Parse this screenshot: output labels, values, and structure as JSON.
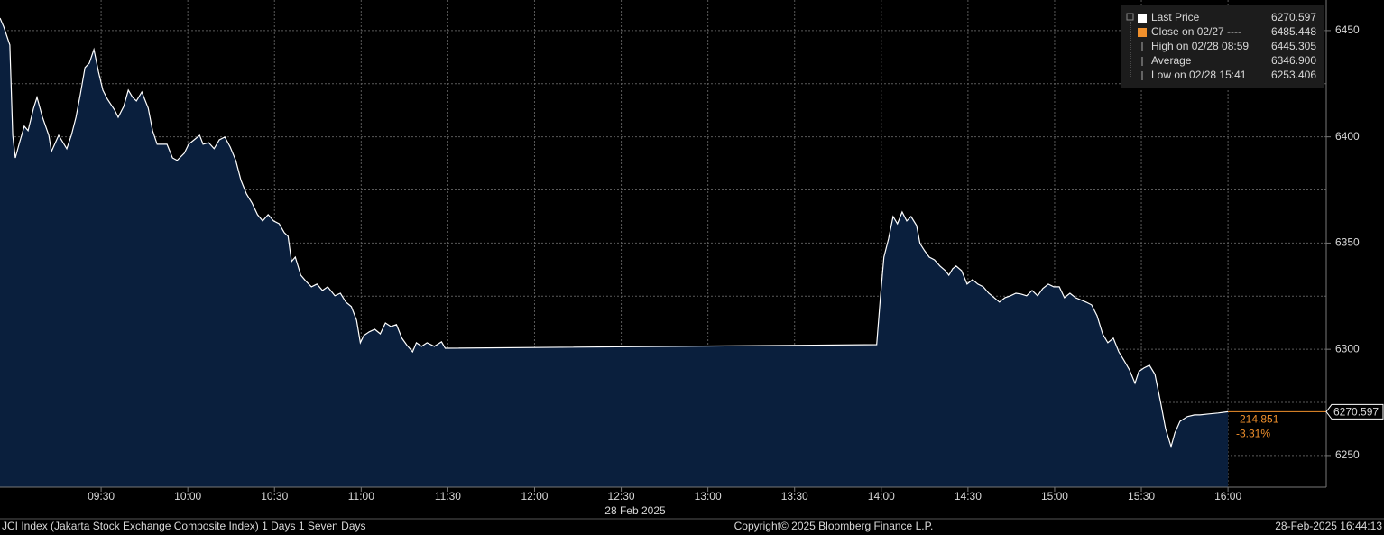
{
  "chart_data": {
    "type": "area",
    "x": [
      535,
      536.3,
      538.4,
      539.4,
      540.3,
      541.6,
      543.4,
      544.7,
      546.6,
      547.8,
      549.7,
      551.9,
      552.8,
      555.3,
      558.1,
      559.7,
      561.3,
      562.8,
      564.4,
      565.9,
      567.5,
      569.1,
      570.6,
      572.2,
      574.7,
      575.9,
      577.8,
      579.4,
      580.9,
      582.2,
      584.1,
      586.3,
      587.8,
      589.4,
      592.8,
      594.7,
      596.3,
      598.8,
      600.3,
      604.1,
      605.3,
      607.2,
      609.1,
      610.9,
      612.8,
      614.7,
      616.6,
      618.4,
      620.3,
      622.2,
      624.1,
      625.9,
      627.8,
      629.7,
      631.6,
      633.4,
      634.7,
      635.9,
      637.2,
      639.1,
      640.9,
      642.8,
      644.7,
      646.6,
      648.4,
      650.9,
      652.8,
      654.7,
      656.6,
      658.4,
      659.7,
      660.9,
      662.8,
      664.7,
      666.6,
      668.4,
      670.3,
      672.2,
      674.1,
      675.9,
      677.8,
      679.1,
      680.9,
      682.8,
      685.3,
      687.8,
      689.1,
      838.4,
      839.7,
      840.9,
      842.5,
      844.1,
      845.6,
      847.2,
      848.8,
      850.3,
      852.2,
      853.4,
      855,
      856.6,
      858.4,
      860.3,
      862.2,
      863.4,
      864.7,
      865.9,
      867.8,
      869.7,
      871.6,
      873.4,
      875.3,
      877.2,
      879.1,
      880.9,
      882.8,
      884.7,
      886.6,
      888.4,
      890.3,
      892.2,
      894.1,
      895.9,
      897.8,
      899.7,
      901.6,
      903.4,
      905.3,
      907.2,
      910.9,
      912.8,
      914.7,
      916.6,
      918.4,
      920.3,
      922.2,
      924.1,
      925.9,
      927.8,
      929.1,
      930.9,
      932.8,
      934.7,
      936.6,
      938.4,
      940.3,
      941.6,
      943.4,
      945.9,
      948.4,
      950.3,
      953.4,
      956.6,
      960
    ],
    "series": [
      {
        "name": "Last Price",
        "color": "#ffffff",
        "fill": "#0a1f3d",
        "values": [
          6455.9,
          6451.7,
          6443.2,
          6400.7,
          6390.1,
          6396.5,
          6405.0,
          6402.9,
          6413.5,
          6418.6,
          6409.2,
          6400.7,
          6393.1,
          6400.7,
          6394.4,
          6400.7,
          6409.2,
          6419.9,
          6432.6,
          6434.7,
          6441.1,
          6430.5,
          6422.0,
          6417.7,
          6412.6,
          6409.2,
          6414.3,
          6422.0,
          6418.6,
          6416.9,
          6421.1,
          6413.5,
          6402.9,
          6396.5,
          6396.5,
          6390.1,
          6388.9,
          6392.3,
          6396.5,
          6400.7,
          6396.5,
          6397.3,
          6394.4,
          6398.6,
          6399.9,
          6395.2,
          6388.9,
          6379.5,
          6373.1,
          6368.9,
          6363.4,
          6360.4,
          6363.4,
          6360.4,
          6359.1,
          6354.9,
          6353.2,
          6341.3,
          6343.4,
          6334.9,
          6332.0,
          6329.4,
          6330.7,
          6327.7,
          6329.4,
          6325.2,
          6326.4,
          6322.2,
          6320.1,
          6313.7,
          6303.1,
          6306.5,
          6308.2,
          6309.4,
          6307.3,
          6312.4,
          6310.7,
          6311.6,
          6305.2,
          6301.8,
          6298.8,
          6303.1,
          6301.4,
          6303.1,
          6301.4,
          6303.5,
          6300.5,
          6302.2,
          6324.3,
          6343.4,
          6351.9,
          6362.5,
          6359.1,
          6364.6,
          6360.4,
          6362.5,
          6358.3,
          6349.8,
          6346.4,
          6343.4,
          6342.1,
          6339.2,
          6337.0,
          6334.9,
          6337.9,
          6339.2,
          6337.0,
          6330.7,
          6332.8,
          6330.7,
          6329.4,
          6326.4,
          6324.3,
          6322.2,
          6324.3,
          6325.2,
          6326.4,
          6326.0,
          6325.2,
          6327.7,
          6325.2,
          6328.6,
          6330.7,
          6329.4,
          6329.4,
          6324.3,
          6326.4,
          6324.3,
          6322.2,
          6320.9,
          6315.8,
          6307.3,
          6303.1,
          6305.2,
          6298.8,
          6294.6,
          6290.3,
          6284.0,
          6289.5,
          6291.2,
          6292.5,
          6288.2,
          6275.5,
          6262.7,
          6254.2,
          6260.6,
          6266.1,
          6268.3,
          6269.1,
          6269.1,
          6269.6,
          6270.0,
          6270.597
        ]
      }
    ],
    "xlim": [
      535,
      994
    ],
    "ylim": [
      6235.1,
      6464.4
    ],
    "xticks": [
      {
        "value": 570,
        "label": "09:30"
      },
      {
        "value": 600,
        "label": "10:00"
      },
      {
        "value": 630,
        "label": "10:30"
      },
      {
        "value": 660,
        "label": "11:00"
      },
      {
        "value": 690,
        "label": "11:30"
      },
      {
        "value": 720,
        "label": "12:00"
      },
      {
        "value": 750,
        "label": "12:30"
      },
      {
        "value": 780,
        "label": "13:00"
      },
      {
        "value": 810,
        "label": "13:30"
      },
      {
        "value": 840,
        "label": "14:00"
      },
      {
        "value": 870,
        "label": "14:30"
      },
      {
        "value": 900,
        "label": "15:00"
      },
      {
        "value": 930,
        "label": "15:30"
      },
      {
        "value": 960,
        "label": "16:00"
      }
    ],
    "yticks": [
      6250,
      6300,
      6350,
      6400,
      6450
    ],
    "yminor": [
      6275,
      6325,
      6375,
      6425
    ],
    "grid": true,
    "date_label": "28 Feb 2025",
    "last_color": "#f0902c",
    "change": -214.851,
    "change_pct": {
      "value": -3.31,
      "label": "-3.31%"
    },
    "legend": [
      {
        "label": "Last Price",
        "value": 6270.597,
        "color": "#ffffff"
      },
      {
        "label": "Close on 02/27 ----",
        "value": 6485.448,
        "color": "#f0902c"
      },
      {
        "label": "High on 02/28 08:59",
        "value": 6445.305
      },
      {
        "label": "Average",
        "value": {
          "value": 6346.9,
          "label": "6346.900"
        }
      },
      {
        "label": "Low on 02/28 15:41",
        "value": 6253.406
      }
    ]
  },
  "footer": {
    "left": "JCI Index (Jakarta Stock Exchange Composite Index) 1 Days 1 Seven Days",
    "center": "Copyright© 2025 Bloomberg Finance L.P.",
    "right": "28-Feb-2025 16:44:13"
  }
}
